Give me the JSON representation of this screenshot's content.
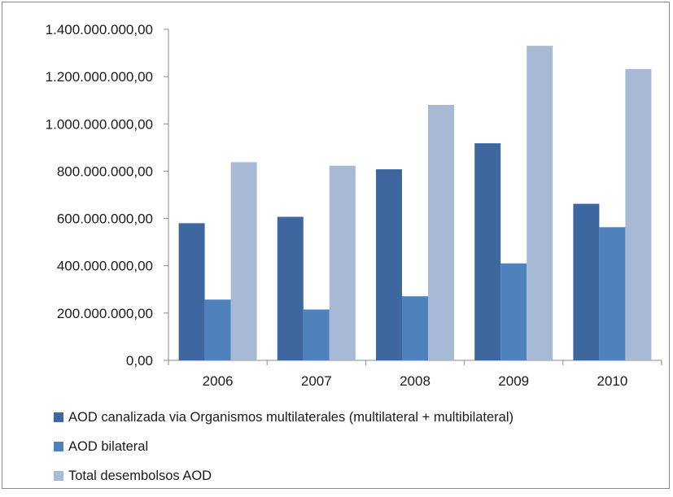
{
  "chart_data": {
    "type": "bar",
    "categories": [
      "2006",
      "2007",
      "2008",
      "2009",
      "2010"
    ],
    "series": [
      {
        "name": "AOD canalizada via Organismos multilaterales (multilateral + multibilateral)",
        "color": "#3f679f",
        "values": [
          580000000,
          607000000,
          808000000,
          918000000,
          662000000
        ]
      },
      {
        "name": "AOD bilateral",
        "color": "#4f81bd",
        "values": [
          257000000,
          215000000,
          271000000,
          410000000,
          563000000
        ]
      },
      {
        "name": "Total desembolsos AOD",
        "color": "#a8b9d6",
        "values": [
          838000000,
          823000000,
          1080000000,
          1330000000,
          1232000000
        ]
      }
    ],
    "ylim": [
      0,
      1400000000
    ],
    "yticks": [
      0,
      200000000,
      400000000,
      600000000,
      800000000,
      1000000000,
      1200000000,
      1400000000
    ],
    "ytick_labels": [
      "0,00",
      "200.000.000,00",
      "400.000.000,00",
      "600.000.000,00",
      "800.000.000,00",
      "1.000.000.000,00",
      "1.200.000.000,00",
      "1.400.000.000,00"
    ],
    "title": "",
    "xlabel": "",
    "ylabel": "",
    "grid": false,
    "legend_position": "bottom"
  }
}
